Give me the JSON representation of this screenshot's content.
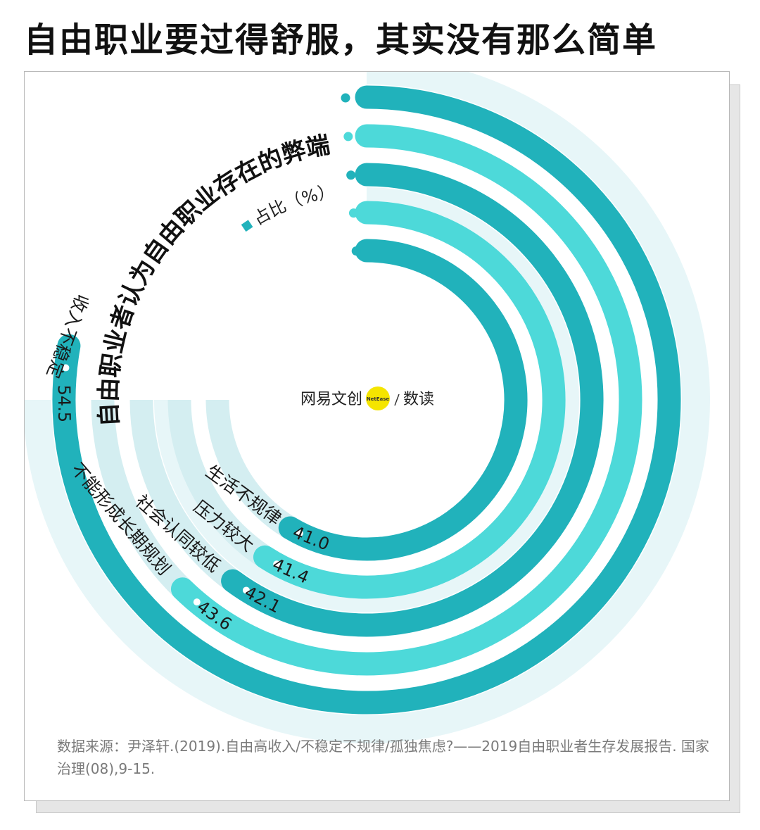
{
  "title": "自由职业要过得舒服，其实没有那么简单",
  "chart_data": {
    "type": "bar",
    "variant": "radial",
    "title": "自由职业者认为自由职业存在的弊端",
    "legend": "占比（%）",
    "categories": [
      "生活不规律",
      "压力较大",
      "社会认同较低",
      "不能形成长期规划",
      "收入不稳定"
    ],
    "values": [
      41.0,
      41.4,
      42.1,
      43.6,
      54.5
    ],
    "value_labels": [
      "41.0",
      "41.4",
      "42.1",
      "43.6",
      "54.5"
    ],
    "colors": [
      "#21b2bb",
      "#4dd9d9",
      "#21b2bb",
      "#4dd9d9",
      "#21b2bb"
    ],
    "track_color": "#d4eef1"
  },
  "logo": {
    "text": "网易文创",
    "badge": "NetEase",
    "sub": "数读"
  },
  "source": "数据来源：尹泽轩.(2019).自由高收入/不稳定不规律/孤独焦虑?——2019自由职业者生存发展报告. 国家治理(08),9-15."
}
